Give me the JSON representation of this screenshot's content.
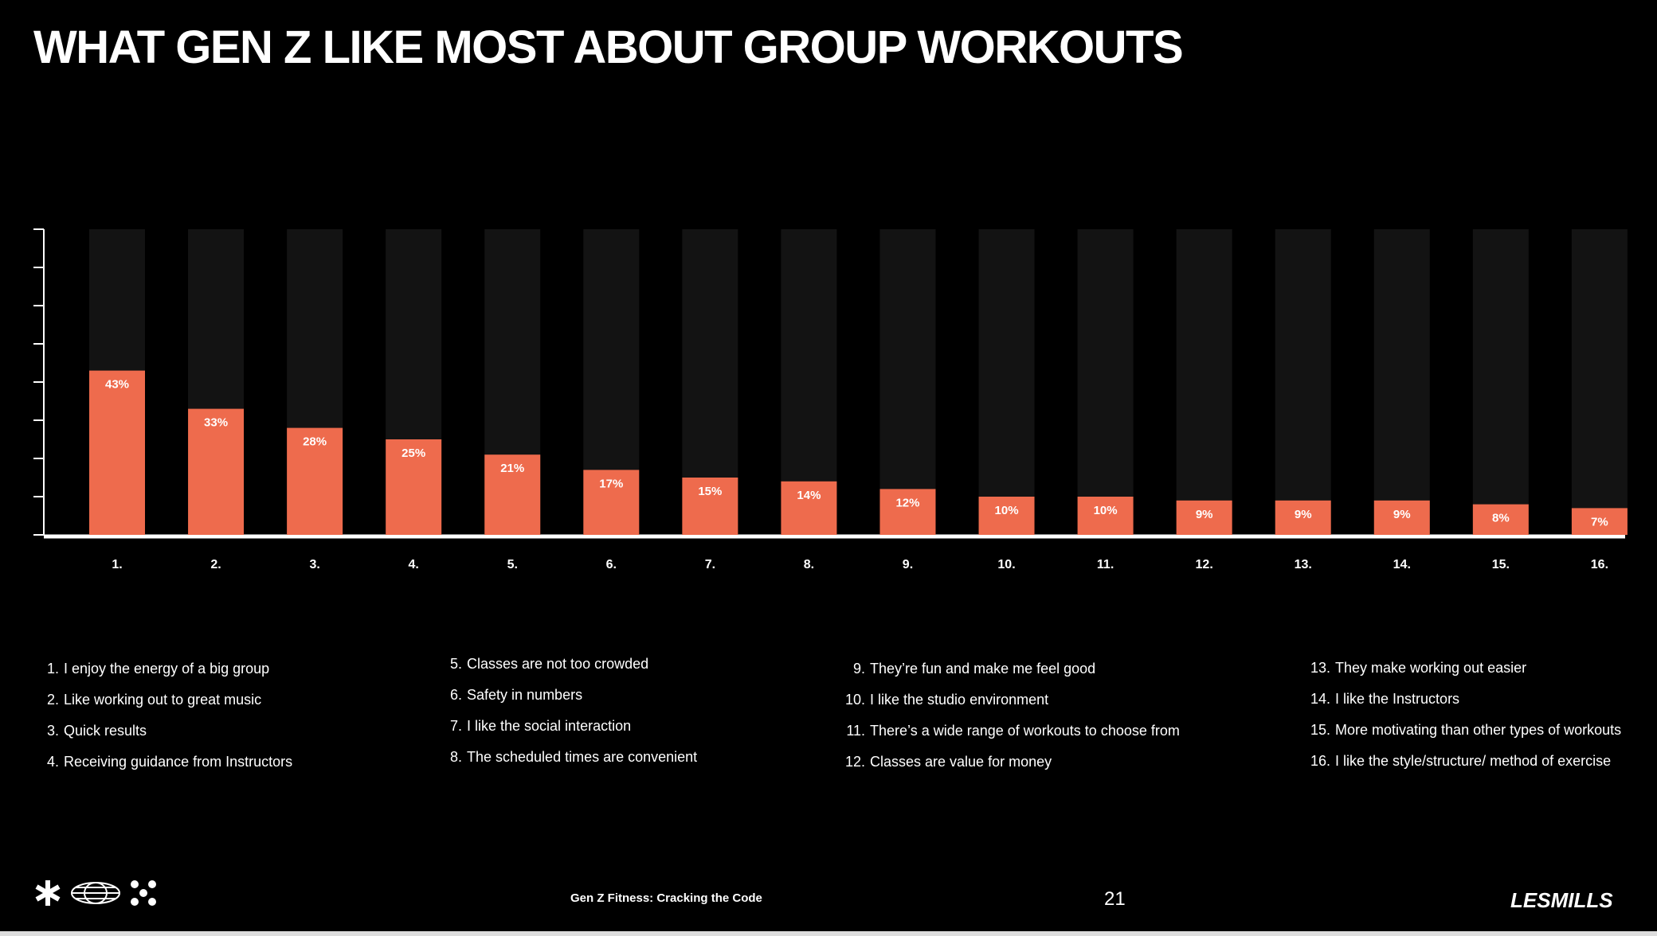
{
  "title": "WHAT GEN Z LIKE MOST ABOUT GROUP WORKOUTS",
  "colors": {
    "bar": "#EE6B4D",
    "track": "#131313",
    "background": "#000000",
    "text": "#FFFFFF"
  },
  "chart_data": {
    "type": "bar",
    "categories": [
      "1.",
      "2.",
      "3.",
      "4.",
      "5.",
      "6.",
      "7.",
      "8.",
      "9.",
      "10.",
      "11.",
      "12.",
      "13.",
      "14.",
      "15.",
      "16."
    ],
    "values": [
      43,
      33,
      28,
      25,
      21,
      17,
      15,
      14,
      12,
      10,
      10,
      9,
      9,
      9,
      8,
      7
    ],
    "data_labels": [
      "43%",
      "33%",
      "28%",
      "25%",
      "21%",
      "17%",
      "15%",
      "14%",
      "12%",
      "10%",
      "10%",
      "9%",
      "9%",
      "9%",
      "8%",
      "7%"
    ],
    "ylim": [
      0,
      80
    ],
    "grid": false,
    "title": "",
    "xlabel": "",
    "ylabel": ""
  },
  "legend": [
    {
      "num": "1.",
      "text": "I enjoy the energy of a big group"
    },
    {
      "num": "2.",
      "text": "Like working out to great music"
    },
    {
      "num": "3.",
      "text": "Quick results"
    },
    {
      "num": "4.",
      "text": "Receiving guidance from Instructors"
    },
    {
      "num": "5.",
      "text": "Classes are not too crowded"
    },
    {
      "num": "6.",
      "text": "Safety in numbers"
    },
    {
      "num": "7.",
      "text": "I like the social interaction"
    },
    {
      "num": "8.",
      "text": "The scheduled times are convenient"
    },
    {
      "num": "9.",
      "text": "They’re fun and make me feel good"
    },
    {
      "num": "10.",
      "text": "I like the studio environment"
    },
    {
      "num": "11.",
      "text": "There’s a wide range of workouts to choose from"
    },
    {
      "num": "12.",
      "text": "Classes are value for money"
    },
    {
      "num": "13.",
      "text": "They make working out easier"
    },
    {
      "num": "14.",
      "text": "I like the Instructors"
    },
    {
      "num": "15.",
      "text": "More motivating than other types of workouts"
    },
    {
      "num": "16.",
      "text": "I like the style/structure/ method of exercise"
    }
  ],
  "footer": {
    "doc_title": "Gen Z Fitness: Cracking the Code",
    "page_number": "21",
    "brand": "LESMILLS",
    "icons": [
      "asterisk-icon",
      "globe-icon",
      "dots-icon"
    ]
  }
}
